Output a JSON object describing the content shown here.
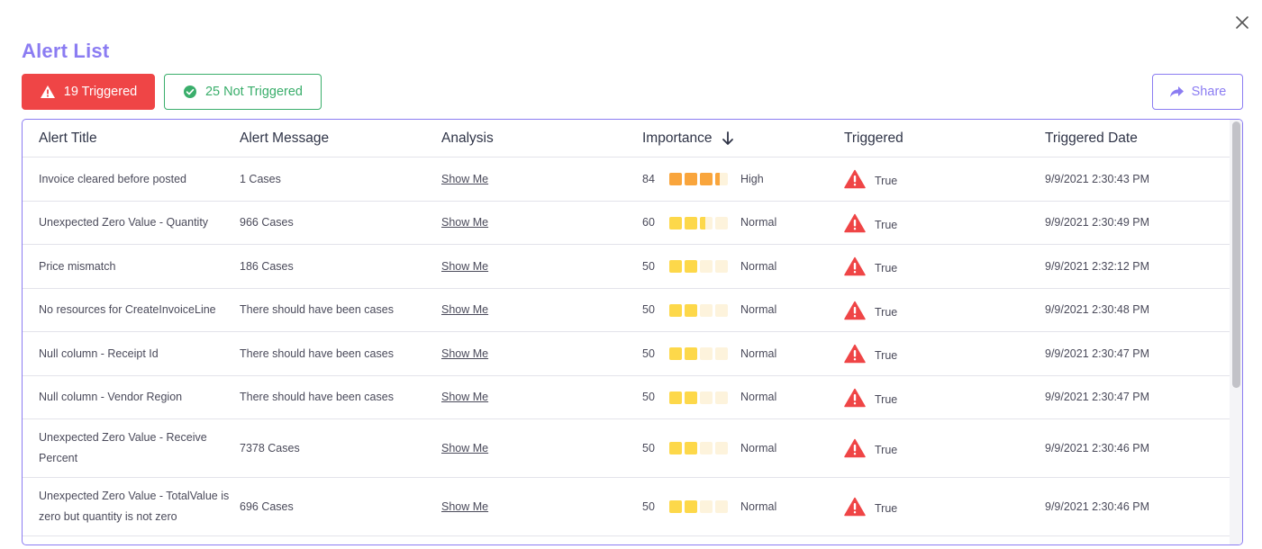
{
  "header": {
    "title": "Alert List",
    "close_icon": "close-icon"
  },
  "filters": {
    "triggered_label": "19 Triggered",
    "not_triggered_label": "25 Not Triggered",
    "share_label": "Share"
  },
  "colors": {
    "accent": "#8b7cf2",
    "danger": "#ef4546",
    "success": "#3aae6b",
    "importance_high": "#f9a53c",
    "importance_normal": "#fdd84a",
    "importance_empty": "#fdf3dc"
  },
  "table": {
    "columns": [
      "Alert Title",
      "Alert Message",
      "Analysis",
      "Importance",
      "Triggered",
      "Triggered Date"
    ],
    "sorted_column": "Importance",
    "sort_direction": "descending",
    "rows": [
      {
        "title": " Invoice cleared before posted",
        "message": "1 Cases",
        "analysis": "Show Me",
        "importance": "84",
        "level": "High",
        "score": 84,
        "triggered": "True",
        "date": "9/9/2021 2:30:43 PM"
      },
      {
        "title": "Unexpected Zero Value - Quantity",
        "message": "966 Cases",
        "analysis": "Show Me",
        "importance": "60",
        "level": "Normal",
        "score": 60,
        "triggered": "True",
        "date": "9/9/2021 2:30:49 PM"
      },
      {
        "title": "Price mismatch",
        "message": "186 Cases",
        "analysis": "Show Me",
        "importance": "50",
        "level": "Normal",
        "score": 50,
        "triggered": "True",
        "date": "9/9/2021 2:32:12 PM"
      },
      {
        "title": "No resources for CreateInvoiceLine",
        "message": "There should have been cases",
        "analysis": "Show Me",
        "importance": "50",
        "level": "Normal",
        "score": 50,
        "triggered": "True",
        "date": "9/9/2021 2:30:48 PM"
      },
      {
        "title": "Null column - Receipt Id",
        "message": "There should have been cases",
        "analysis": "Show Me",
        "importance": "50",
        "level": "Normal",
        "score": 50,
        "triggered": "True",
        "date": "9/9/2021 2:30:47 PM"
      },
      {
        "title": "Null column - Vendor Region",
        "message": "There should have been cases",
        "analysis": "Show Me",
        "importance": "50",
        "level": "Normal",
        "score": 50,
        "triggered": "True",
        "date": "9/9/2021 2:30:47 PM"
      },
      {
        "title": "Unexpected Zero Value - Receive Percent",
        "message": "7378 Cases",
        "analysis": "Show Me",
        "importance": "50",
        "level": "Normal",
        "score": 50,
        "triggered": "True",
        "date": "9/9/2021 2:30:46 PM"
      },
      {
        "title": "Unexpected Zero Value - TotalValue is zero but quantity is not zero",
        "message": "696 Cases",
        "analysis": "Show Me",
        "importance": "50",
        "level": "Normal",
        "score": 50,
        "triggered": "True",
        "date": "9/9/2021 2:30:46 PM"
      }
    ]
  }
}
